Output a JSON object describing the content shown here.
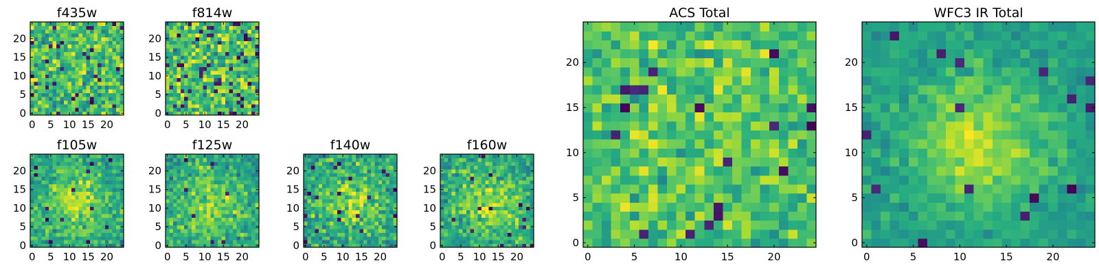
{
  "chart_data": [
    {
      "type": "heatmap",
      "title": "f435w",
      "colormap": "viridis",
      "xticks": [
        "0",
        "5",
        "10",
        "15",
        "20"
      ],
      "yticks": [
        "0",
        "5",
        "10",
        "15",
        "20"
      ],
      "xlim": [
        0,
        25
      ],
      "ylim": [
        0,
        25
      ],
      "grid": false,
      "cells": {
        "rows": 25,
        "cols": 25,
        "structure": "noise",
        "center": 0.7,
        "noise": 0.14,
        "peak": 0.02,
        "sigma": 6,
        "dark_fraction": 0.06,
        "seed": 11
      }
    },
    {
      "type": "heatmap",
      "title": "f814w",
      "colormap": "viridis",
      "xticks": [
        "0",
        "5",
        "10",
        "15",
        "20"
      ],
      "yticks": [
        "0",
        "5",
        "10",
        "15",
        "20"
      ],
      "xlim": [
        0,
        25
      ],
      "ylim": [
        0,
        25
      ],
      "grid": false,
      "cells": {
        "rows": 25,
        "cols": 25,
        "structure": "noise",
        "center": 0.7,
        "noise": 0.15,
        "peak": 0.05,
        "sigma": 6,
        "dark_fraction": 0.07,
        "seed": 23
      }
    },
    {
      "type": "heatmap",
      "title": "f105w",
      "colormap": "viridis",
      "xticks": [
        "0",
        "5",
        "10",
        "15",
        "20"
      ],
      "yticks": [
        "0",
        "5",
        "10",
        "15",
        "20"
      ],
      "xlim": [
        0,
        25
      ],
      "ylim": [
        0,
        25
      ],
      "grid": false,
      "cells": {
        "rows": 25,
        "cols": 25,
        "structure": "source",
        "source_x": 12,
        "source_y": 12,
        "center": 0.58,
        "noise": 0.1,
        "peak": 0.28,
        "sigma": 6,
        "dark_fraction": 0.015,
        "seed": 37
      }
    },
    {
      "type": "heatmap",
      "title": "f125w",
      "colormap": "viridis",
      "xticks": [
        "0",
        "5",
        "10",
        "15",
        "20"
      ],
      "yticks": [
        "0",
        "5",
        "10",
        "15",
        "20"
      ],
      "xlim": [
        0,
        25
      ],
      "ylim": [
        0,
        25
      ],
      "grid": false,
      "cells": {
        "rows": 25,
        "cols": 25,
        "structure": "source",
        "source_x": 12,
        "source_y": 11,
        "center": 0.58,
        "noise": 0.11,
        "peak": 0.26,
        "sigma": 6,
        "dark_fraction": 0.015,
        "seed": 41
      }
    },
    {
      "type": "heatmap",
      "title": "f140w",
      "colormap": "viridis",
      "xticks": [
        "0",
        "5",
        "10",
        "15",
        "20"
      ],
      "yticks": [
        "0",
        "5",
        "10",
        "15",
        "20"
      ],
      "xlim": [
        0,
        25
      ],
      "ylim": [
        0,
        25
      ],
      "grid": false,
      "cells": {
        "rows": 25,
        "cols": 25,
        "structure": "source",
        "source_x": 13,
        "source_y": 12,
        "center": 0.58,
        "noise": 0.12,
        "peak": 0.24,
        "sigma": 6,
        "dark_fraction": 0.03,
        "seed": 53
      }
    },
    {
      "type": "heatmap",
      "title": "f160w",
      "colormap": "viridis",
      "xticks": [
        "0",
        "5",
        "10",
        "15",
        "20"
      ],
      "yticks": [
        "0",
        "5",
        "10",
        "15",
        "20"
      ],
      "xlim": [
        0,
        25
      ],
      "ylim": [
        0,
        25
      ],
      "grid": false,
      "cells": {
        "rows": 25,
        "cols": 25,
        "structure": "source",
        "source_x": 13,
        "source_y": 11,
        "center": 0.58,
        "noise": 0.11,
        "peak": 0.28,
        "sigma": 6,
        "dark_fraction": 0.02,
        "seed": 67
      }
    },
    {
      "type": "heatmap",
      "title": "ACS Total",
      "colormap": "viridis",
      "xticks": [
        "0",
        "5",
        "10",
        "15",
        "20"
      ],
      "yticks": [
        "0",
        "5",
        "10",
        "15",
        "20"
      ],
      "xlim": [
        0,
        25
      ],
      "ylim": [
        0,
        25
      ],
      "grid": false,
      "cells": {
        "rows": 25,
        "cols": 25,
        "structure": "noise",
        "center": 0.7,
        "noise": 0.11,
        "peak": 0.06,
        "sigma": 7,
        "dark_fraction": 0.035,
        "seed": 79
      }
    },
    {
      "type": "heatmap",
      "title": "WFC3 IR Total",
      "colormap": "viridis",
      "xticks": [
        "0",
        "5",
        "10",
        "15",
        "20"
      ],
      "yticks": [
        "0",
        "5",
        "10",
        "15",
        "20"
      ],
      "xlim": [
        0,
        25
      ],
      "ylim": [
        0,
        25
      ],
      "grid": false,
      "cells": {
        "rows": 25,
        "cols": 25,
        "structure": "source",
        "source_x": 12,
        "source_y": 11,
        "center": 0.55,
        "noise": 0.06,
        "peak": 0.36,
        "sigma": 5,
        "dark_fraction": 0.025,
        "seed": 97
      }
    }
  ],
  "colors": {
    "viridis_dark": "#440154",
    "viridis_mid": "#21918c",
    "viridis_bright": "#fde725",
    "frame": "#000000",
    "background": "#ffffff"
  }
}
